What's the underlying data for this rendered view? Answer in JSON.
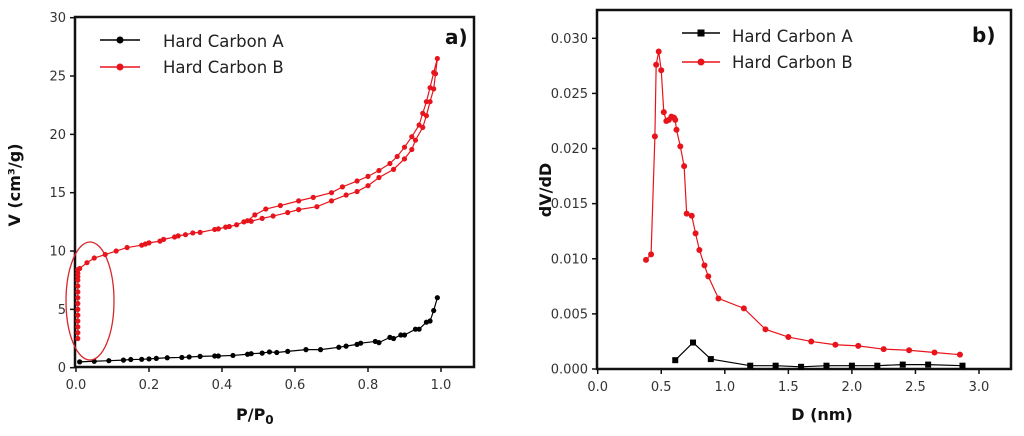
{
  "chart_data": [
    {
      "type": "line",
      "panel_label": "a)",
      "xlabel": "P/P",
      "xlabel_subscript": "0",
      "ylabel": "V (cm³/g)",
      "xlim": [
        0,
        1.09
      ],
      "ylim": [
        0,
        30
      ],
      "xticks": [
        "0.0",
        "0.2",
        "0.4",
        "0.6",
        "0.8",
        "1.0"
      ],
      "yticks": [
        "0",
        "5",
        "10",
        "15",
        "20",
        "25",
        "30"
      ],
      "grid": false,
      "legend_position": "top-left",
      "annotation": "red ellipse highlighting low-pressure region (P/P0 ≈ 0–0.1)",
      "series": [
        {
          "name": "Hard Carbon A",
          "color": "#000000",
          "marker": "circle",
          "x": [
            0.01,
            0.05,
            0.09,
            0.13,
            0.15,
            0.18,
            0.2,
            0.22,
            0.25,
            0.29,
            0.31,
            0.34,
            0.38,
            0.39,
            0.43,
            0.47,
            0.48,
            0.51,
            0.53,
            0.55,
            0.58,
            0.63,
            0.67,
            0.72,
            0.74,
            0.77,
            0.78,
            0.82,
            0.83,
            0.86,
            0.87,
            0.89,
            0.9,
            0.93,
            0.94,
            0.96,
            0.97,
            0.98,
            0.99
          ],
          "y": [
            0.5,
            0.55,
            0.6,
            0.65,
            0.7,
            0.72,
            0.75,
            0.8,
            0.85,
            0.88,
            0.92,
            0.97,
            1.0,
            1.0,
            1.05,
            1.15,
            1.2,
            1.25,
            1.35,
            1.3,
            1.4,
            1.55,
            1.55,
            1.75,
            1.85,
            2.0,
            2.1,
            2.25,
            2.15,
            2.6,
            2.5,
            2.8,
            2.8,
            3.3,
            3.3,
            3.9,
            4.0,
            4.9,
            6.0
          ]
        },
        {
          "name": "Hard Carbon B",
          "color": "#e8141c",
          "marker": "circle",
          "x": [
            0.005,
            0.005,
            0.005,
            0.005,
            0.005,
            0.005,
            0.005,
            0.005,
            0.005,
            0.005,
            0.005,
            0.005,
            0.005,
            0.005,
            0.01,
            0.03,
            0.05,
            0.08,
            0.11,
            0.14,
            0.18,
            0.19,
            0.2,
            0.23,
            0.24,
            0.27,
            0.28,
            0.3,
            0.32,
            0.34,
            0.38,
            0.39,
            0.41,
            0.42,
            0.44,
            0.46,
            0.48,
            0.51,
            0.54,
            0.58,
            0.61,
            0.66,
            0.7,
            0.74,
            0.77,
            0.8,
            0.83,
            0.87,
            0.9,
            0.92,
            0.93,
            0.95,
            0.96,
            0.97,
            0.98,
            0.985,
            0.99,
            0.98,
            0.97,
            0.96,
            0.95,
            0.94,
            0.92,
            0.9,
            0.88,
            0.86,
            0.83,
            0.8,
            0.77,
            0.73,
            0.7,
            0.65,
            0.61,
            0.56,
            0.52,
            0.49,
            0.47
          ],
          "y": [
            2.5,
            3.0,
            3.5,
            4.0,
            4.5,
            5.0,
            5.5,
            6.0,
            6.5,
            7.0,
            7.5,
            7.8,
            8.1,
            8.4,
            8.5,
            9.0,
            9.4,
            9.7,
            10.0,
            10.3,
            10.5,
            10.6,
            10.7,
            10.85,
            11.0,
            11.2,
            11.3,
            11.4,
            11.55,
            11.6,
            11.85,
            11.9,
            12.05,
            12.1,
            12.25,
            12.5,
            12.55,
            12.8,
            13.0,
            13.3,
            13.55,
            13.8,
            14.3,
            14.8,
            15.1,
            15.6,
            16.3,
            17.0,
            17.9,
            18.7,
            19.5,
            20.6,
            21.6,
            22.8,
            23.9,
            25.2,
            26.5,
            25.3,
            24.0,
            22.8,
            21.8,
            20.8,
            19.8,
            18.9,
            18.1,
            17.5,
            16.9,
            16.4,
            16.0,
            15.5,
            15.0,
            14.6,
            14.3,
            13.9,
            13.6,
            13.1,
            12.6
          ]
        }
      ]
    },
    {
      "type": "line",
      "panel_label": "b)",
      "xlabel": "D (nm)",
      "ylabel": "dV/dD",
      "xlim": [
        0,
        3.25
      ],
      "ylim": [
        0,
        0.0325
      ],
      "xticks": [
        "0.0",
        "0.5",
        "1.0",
        "1.5",
        "2.0",
        "2.5",
        "3.0"
      ],
      "yticks": [
        "0.000",
        "0.005",
        "0.010",
        "0.015",
        "0.020",
        "0.025",
        "0.030"
      ],
      "grid": false,
      "legend_position": "top-center",
      "series": [
        {
          "name": "Hard Carbon A",
          "color": "#000000",
          "marker": "square",
          "x": [
            0.61,
            0.75,
            0.89,
            1.2,
            1.4,
            1.6,
            1.8,
            2.0,
            2.2,
            2.4,
            2.6,
            2.87
          ],
          "y": [
            0.0008,
            0.0024,
            0.0009,
            0.0003,
            0.0003,
            0.0002,
            0.0003,
            0.0003,
            0.0003,
            0.0004,
            0.0004,
            0.0003
          ]
        },
        {
          "name": "Hard Carbon B",
          "color": "#e8141c",
          "marker": "circle",
          "x": [
            0.38,
            0.42,
            0.45,
            0.46,
            0.48,
            0.5,
            0.52,
            0.54,
            0.56,
            0.58,
            0.6,
            0.61,
            0.62,
            0.65,
            0.68,
            0.7,
            0.74,
            0.77,
            0.8,
            0.84,
            0.87,
            0.95,
            1.15,
            1.32,
            1.5,
            1.68,
            1.87,
            2.05,
            2.25,
            2.45,
            2.65,
            2.85
          ],
          "y": [
            0.0099,
            0.0104,
            0.0211,
            0.0276,
            0.0288,
            0.0271,
            0.0233,
            0.0225,
            0.0226,
            0.0229,
            0.0228,
            0.0226,
            0.0217,
            0.0202,
            0.0184,
            0.0141,
            0.0139,
            0.0123,
            0.0108,
            0.0094,
            0.0084,
            0.0064,
            0.0055,
            0.0036,
            0.0029,
            0.0025,
            0.0022,
            0.0021,
            0.0018,
            0.0017,
            0.0015,
            0.0013
          ]
        }
      ]
    }
  ]
}
